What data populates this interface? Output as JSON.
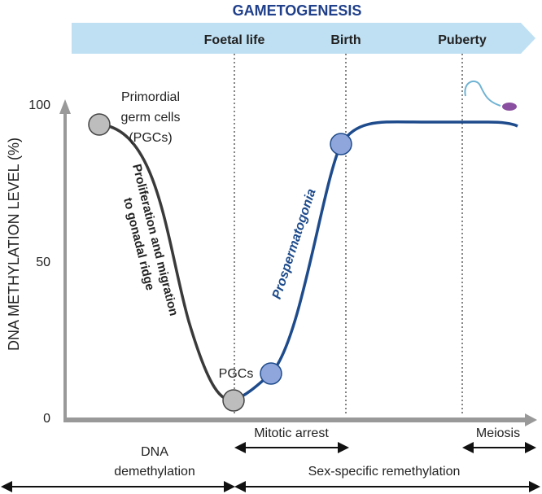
{
  "header": {
    "title": "GAMETOGENESIS",
    "phases": [
      "Foetal life",
      "Birth",
      "Puberty"
    ]
  },
  "y_axis": {
    "label": "DNA METHYLATION LEVEL (%)",
    "ticks": [
      "100",
      "50",
      "0"
    ]
  },
  "annotations": {
    "primordial": [
      "Primordial",
      "germ cells",
      "(PGCs)"
    ],
    "pgcs": "PGCs",
    "migration": [
      "Proliferation and migration",
      "to gonadal ridge"
    ],
    "prospermatogonia": "Prospermatogonia"
  },
  "bottom": {
    "mitotic_arrest": "Mitotic arrest",
    "meiosis": "Meiosis",
    "demethylation": [
      "DNA",
      "demethylation"
    ],
    "remethylation": "Sex-specific remethylation"
  }
}
